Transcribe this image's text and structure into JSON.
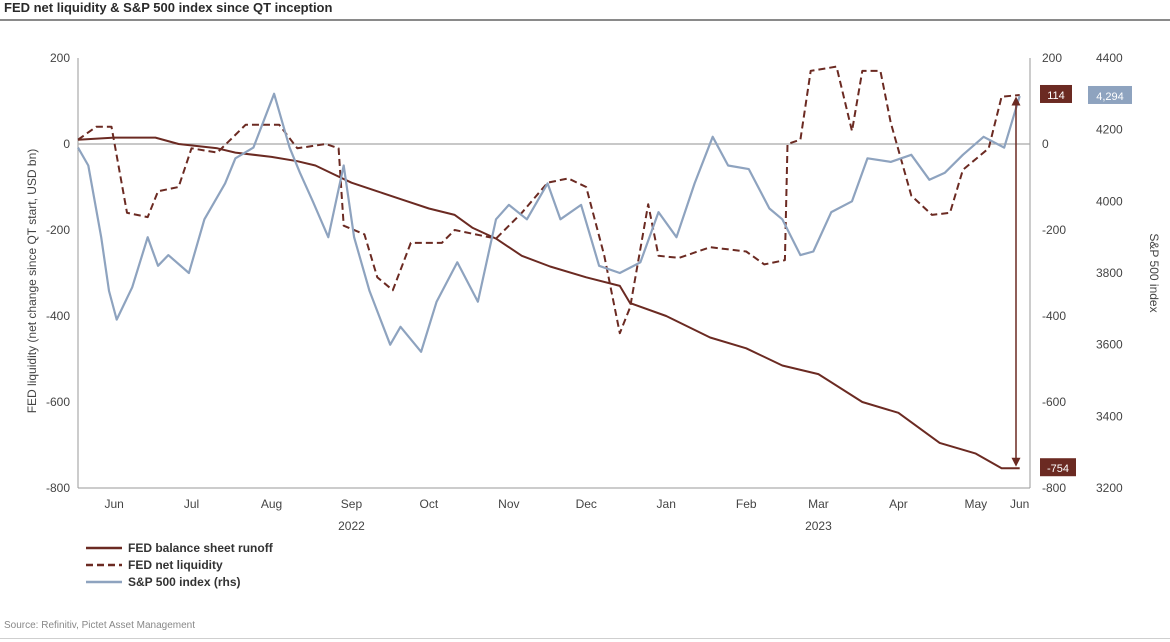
{
  "title": "FED net liquidity & S&P 500 index since QT inception",
  "source": "Source: Refinitiv, Pictet Asset Management",
  "chart_data": {
    "type": "line",
    "title": "FED net liquidity & S&P 500 index since QT inception",
    "ylabel": "FED liquidity (net change since QT start, USD bn)",
    "ylabel_right": "S&P 500 index",
    "ylim": [
      -800,
      200
    ],
    "ylim_right_inner": [
      -800,
      200
    ],
    "ylim_right_outer": [
      3200,
      4400
    ],
    "yticks": [
      200,
      0,
      -200,
      -400,
      -600,
      -800
    ],
    "yticks_right_outer": [
      4400,
      4200,
      4000,
      3800,
      3600,
      3400,
      3200
    ],
    "x_start": "2022-06-01",
    "x_end": "2023-06-05",
    "month_ticks": [
      {
        "label": "Jun",
        "date": "2022-06-15"
      },
      {
        "label": "Jul",
        "date": "2022-07-15"
      },
      {
        "label": "Aug",
        "date": "2022-08-15"
      },
      {
        "label": "Sep",
        "date": "2022-09-15"
      },
      {
        "label": "Oct",
        "date": "2022-10-15"
      },
      {
        "label": "Nov",
        "date": "2022-11-15"
      },
      {
        "label": "Dec",
        "date": "2022-12-15"
      },
      {
        "label": "Jan",
        "date": "2023-01-15"
      },
      {
        "label": "Feb",
        "date": "2023-02-15"
      },
      {
        "label": "Mar",
        "date": "2023-03-15"
      },
      {
        "label": "Apr",
        "date": "2023-04-15"
      },
      {
        "label": "May",
        "date": "2023-05-15"
      },
      {
        "label": "Jun",
        "date": "2023-06-01"
      }
    ],
    "year_labels": [
      {
        "label": "2022",
        "date": "2022-09-15"
      },
      {
        "label": "2023",
        "date": "2023-03-15"
      }
    ],
    "end_labels": {
      "net_liquidity": "114",
      "runoff": "-754",
      "sp500": "4,294"
    },
    "series": [
      {
        "name": "FED balance sheet runoff",
        "axis": "left",
        "style": "solid",
        "color": "#6b2a22",
        "points": [
          [
            "2022-06-01",
            10
          ],
          [
            "2022-06-15",
            15
          ],
          [
            "2022-07-01",
            15
          ],
          [
            "2022-07-10",
            0
          ],
          [
            "2022-07-25",
            -10
          ],
          [
            "2022-08-01",
            -20
          ],
          [
            "2022-08-15",
            -30
          ],
          [
            "2022-08-25",
            -40
          ],
          [
            "2022-09-01",
            -50
          ],
          [
            "2022-09-08",
            -70
          ],
          [
            "2022-09-15",
            -90
          ],
          [
            "2022-09-25",
            -110
          ],
          [
            "2022-10-05",
            -130
          ],
          [
            "2022-10-15",
            -150
          ],
          [
            "2022-10-25",
            -165
          ],
          [
            "2022-11-01",
            -195
          ],
          [
            "2022-11-10",
            -220
          ],
          [
            "2022-11-20",
            -260
          ],
          [
            "2022-12-01",
            -285
          ],
          [
            "2022-12-15",
            -310
          ],
          [
            "2022-12-28",
            -330
          ],
          [
            "2023-01-01",
            -370
          ],
          [
            "2023-01-15",
            -400
          ],
          [
            "2023-02-01",
            -450
          ],
          [
            "2023-02-15",
            -475
          ],
          [
            "2023-03-01",
            -515
          ],
          [
            "2023-03-15",
            -535
          ],
          [
            "2023-04-01",
            -600
          ],
          [
            "2023-04-15",
            -625
          ],
          [
            "2023-05-01",
            -695
          ],
          [
            "2023-05-15",
            -720
          ],
          [
            "2023-05-25",
            -754
          ],
          [
            "2023-06-01",
            -754
          ]
        ]
      },
      {
        "name": "FED net liquidity",
        "axis": "left",
        "style": "dashed",
        "color": "#6b2a22",
        "points": [
          [
            "2022-06-01",
            10
          ],
          [
            "2022-06-08",
            40
          ],
          [
            "2022-06-14",
            40
          ],
          [
            "2022-06-20",
            -160
          ],
          [
            "2022-06-28",
            -170
          ],
          [
            "2022-07-02",
            -110
          ],
          [
            "2022-07-10",
            -100
          ],
          [
            "2022-07-15",
            -10
          ],
          [
            "2022-07-25",
            -20
          ],
          [
            "2022-08-05",
            45
          ],
          [
            "2022-08-18",
            45
          ],
          [
            "2022-08-25",
            -10
          ],
          [
            "2022-09-05",
            0
          ],
          [
            "2022-09-10",
            -10
          ],
          [
            "2022-09-12",
            -190
          ],
          [
            "2022-09-20",
            -210
          ],
          [
            "2022-09-25",
            -310
          ],
          [
            "2022-10-01",
            -340
          ],
          [
            "2022-10-08",
            -230
          ],
          [
            "2022-10-20",
            -230
          ],
          [
            "2022-10-25",
            -200
          ],
          [
            "2022-11-10",
            -220
          ],
          [
            "2022-11-20",
            -160
          ],
          [
            "2022-11-30",
            -90
          ],
          [
            "2022-12-08",
            -80
          ],
          [
            "2022-12-15",
            -100
          ],
          [
            "2022-12-22",
            -260
          ],
          [
            "2022-12-28",
            -440
          ],
          [
            "2023-01-01",
            -380
          ],
          [
            "2023-01-08",
            -140
          ],
          [
            "2023-01-12",
            -260
          ],
          [
            "2023-01-20",
            -265
          ],
          [
            "2023-02-01",
            -240
          ],
          [
            "2023-02-15",
            -250
          ],
          [
            "2023-02-22",
            -280
          ],
          [
            "2023-03-02",
            -270
          ],
          [
            "2023-03-03",
            0
          ],
          [
            "2023-03-08",
            10
          ],
          [
            "2023-03-12",
            170
          ],
          [
            "2023-03-22",
            180
          ],
          [
            "2023-03-28",
            30
          ],
          [
            "2023-04-01",
            170
          ],
          [
            "2023-04-08",
            170
          ],
          [
            "2023-04-12",
            50
          ],
          [
            "2023-04-20",
            -120
          ],
          [
            "2023-04-28",
            -165
          ],
          [
            "2023-05-05",
            -160
          ],
          [
            "2023-05-10",
            -60
          ],
          [
            "2023-05-20",
            -10
          ],
          [
            "2023-05-25",
            110
          ],
          [
            "2023-06-01",
            114
          ]
        ]
      },
      {
        "name": "S&P 500 index (rhs)",
        "axis": "right",
        "style": "solid",
        "color": "#8ea3bf",
        "points": [
          [
            "2022-06-01",
            4150
          ],
          [
            "2022-06-05",
            4100
          ],
          [
            "2022-06-10",
            3900
          ],
          [
            "2022-06-13",
            3750
          ],
          [
            "2022-06-16",
            3670
          ],
          [
            "2022-06-22",
            3760
          ],
          [
            "2022-06-28",
            3900
          ],
          [
            "2022-07-02",
            3820
          ],
          [
            "2022-07-06",
            3850
          ],
          [
            "2022-07-14",
            3800
          ],
          [
            "2022-07-20",
            3950
          ],
          [
            "2022-07-28",
            4050
          ],
          [
            "2022-08-01",
            4120
          ],
          [
            "2022-08-08",
            4150
          ],
          [
            "2022-08-16",
            4300
          ],
          [
            "2022-08-22",
            4150
          ],
          [
            "2022-08-26",
            4080
          ],
          [
            "2022-08-31",
            4000
          ],
          [
            "2022-09-06",
            3900
          ],
          [
            "2022-09-12",
            4100
          ],
          [
            "2022-09-16",
            3900
          ],
          [
            "2022-09-22",
            3750
          ],
          [
            "2022-09-30",
            3600
          ],
          [
            "2022-10-04",
            3650
          ],
          [
            "2022-10-12",
            3580
          ],
          [
            "2022-10-18",
            3720
          ],
          [
            "2022-10-26",
            3830
          ],
          [
            "2022-11-03",
            3720
          ],
          [
            "2022-11-10",
            3950
          ],
          [
            "2022-11-15",
            3990
          ],
          [
            "2022-11-22",
            3950
          ],
          [
            "2022-11-30",
            4050
          ],
          [
            "2022-12-05",
            3950
          ],
          [
            "2022-12-13",
            3990
          ],
          [
            "2022-12-20",
            3820
          ],
          [
            "2022-12-28",
            3800
          ],
          [
            "2023-01-05",
            3830
          ],
          [
            "2023-01-12",
            3970
          ],
          [
            "2023-01-19",
            3900
          ],
          [
            "2023-01-26",
            4050
          ],
          [
            "2023-02-02",
            4180
          ],
          [
            "2023-02-08",
            4100
          ],
          [
            "2023-02-16",
            4090
          ],
          [
            "2023-02-24",
            3980
          ],
          [
            "2023-03-01",
            3950
          ],
          [
            "2023-03-08",
            3850
          ],
          [
            "2023-03-13",
            3860
          ],
          [
            "2023-03-20",
            3970
          ],
          [
            "2023-03-28",
            4000
          ],
          [
            "2023-04-03",
            4120
          ],
          [
            "2023-04-12",
            4110
          ],
          [
            "2023-04-20",
            4130
          ],
          [
            "2023-04-27",
            4060
          ],
          [
            "2023-05-03",
            4080
          ],
          [
            "2023-05-10",
            4130
          ],
          [
            "2023-05-18",
            4180
          ],
          [
            "2023-05-26",
            4150
          ],
          [
            "2023-06-01",
            4294
          ]
        ]
      }
    ],
    "legend": [
      {
        "label": "FED balance sheet runoff",
        "style": "solid",
        "color": "#6b2a22"
      },
      {
        "label": "FED net liquidity",
        "style": "dashed",
        "color": "#6b2a22"
      },
      {
        "label": "S&P 500 index (rhs)",
        "style": "solid",
        "color": "#8ea3bf"
      }
    ],
    "legend_position": "bottom-left",
    "grid": false,
    "zero_line": true,
    "annotation": "arrow between net liquidity and runoff end values"
  }
}
